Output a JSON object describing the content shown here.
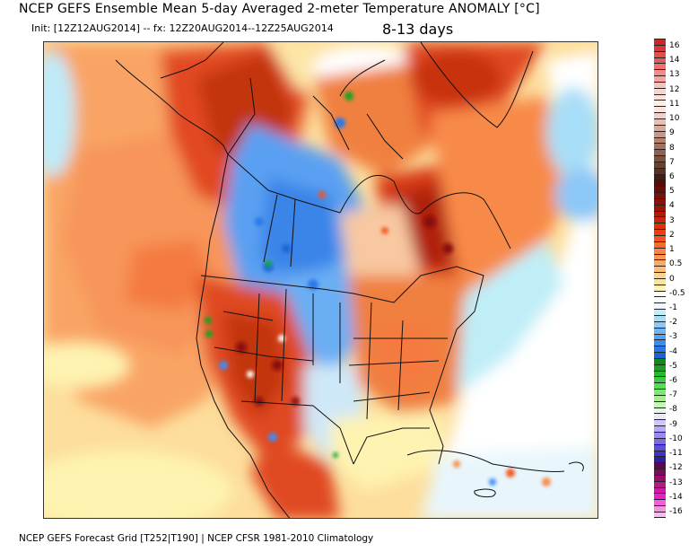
{
  "header": {
    "title": "NCEP GEFS Ensemble Mean 5-day Averaged 2-meter Temperature ANOMALY [°C]",
    "init": "Init: [12Z12AUG2014] -- fx: 12Z20AUG2014--12Z25AUG2014",
    "period": "8-13 days"
  },
  "footer": {
    "source": "NCEP GEFS Forecast Grid [T252|T190] | NCEP CFSR 1981-2010 Climatology"
  },
  "map": {
    "region": "North America",
    "colors": {
      "ocean_warm_light": "#fbd28c",
      "ocean_warm": "#f9a465",
      "warm_strong": "#e8451f",
      "warm_very_strong": "#b8260e",
      "cold": "#4a90e8",
      "cold_light": "#a9e3f5",
      "neutral": "#ffffff",
      "coast": "#111111"
    }
  },
  "colorbar": {
    "labels": [
      "16",
      "14",
      "13",
      "12",
      "11",
      "10",
      "9",
      "8",
      "7",
      "6",
      "5",
      "4",
      "3",
      "2",
      "1",
      "0.5",
      "0",
      "-0.5",
      "-1",
      "-2",
      "-3",
      "-4",
      "-5",
      "-6",
      "-7",
      "-8",
      "-9",
      "-10",
      "-11",
      "-12",
      "-13",
      "-14",
      "-16"
    ],
    "swatches": [
      "#c42a2a",
      "#d13a3a",
      "#e05050",
      "#e25c5c",
      "#f07070",
      "#f48a8a",
      "#f6a3a3",
      "#f8c2bc",
      "#f9d5cf",
      "#fbe4de",
      "#fdeeea",
      "#fbe6e0",
      "#f2d0c8",
      "#e6bfb5",
      "#d9a99b",
      "#c89888",
      "#b58574",
      "#a37262",
      "#8f6150",
      "#7c5140",
      "#6b4230",
      "#5a3222",
      "#4a1a10",
      "#5a0d08",
      "#6a0d08",
      "#7a1008",
      "#8a1008",
      "#9c1408",
      "#b01c08",
      "#c42808",
      "#d83408",
      "#e84010",
      "#f45520",
      "#fb6a2a",
      "#fc8240",
      "#fd9550",
      "#fdaa60",
      "#fdbe75",
      "#fdd488",
      "#fde598",
      "#fff5b0",
      "#fffdf8",
      "#ffffff",
      "#eef9fc",
      "#bfeef8",
      "#a8dcf8",
      "#8cc8f8",
      "#70b4f6",
      "#5aa0f2",
      "#3f8cf0",
      "#2a78e8",
      "#1a64d8",
      "#108a18",
      "#18a020",
      "#28b830",
      "#38cc40",
      "#50e050",
      "#78ec70",
      "#a0f090",
      "#c4f8b4",
      "#e4fadc",
      "#e8e8fc",
      "#d0c8fc",
      "#b8a8fc",
      "#9a88f4",
      "#7c6ae8",
      "#5e4ee0",
      "#4432c8",
      "#30209c",
      "#5c0a4c",
      "#7a0c5c",
      "#96106e",
      "#b81888",
      "#d01aa8",
      "#e820c8",
      "#f460d8",
      "#f890e4",
      "#fcb8f0"
    ]
  }
}
